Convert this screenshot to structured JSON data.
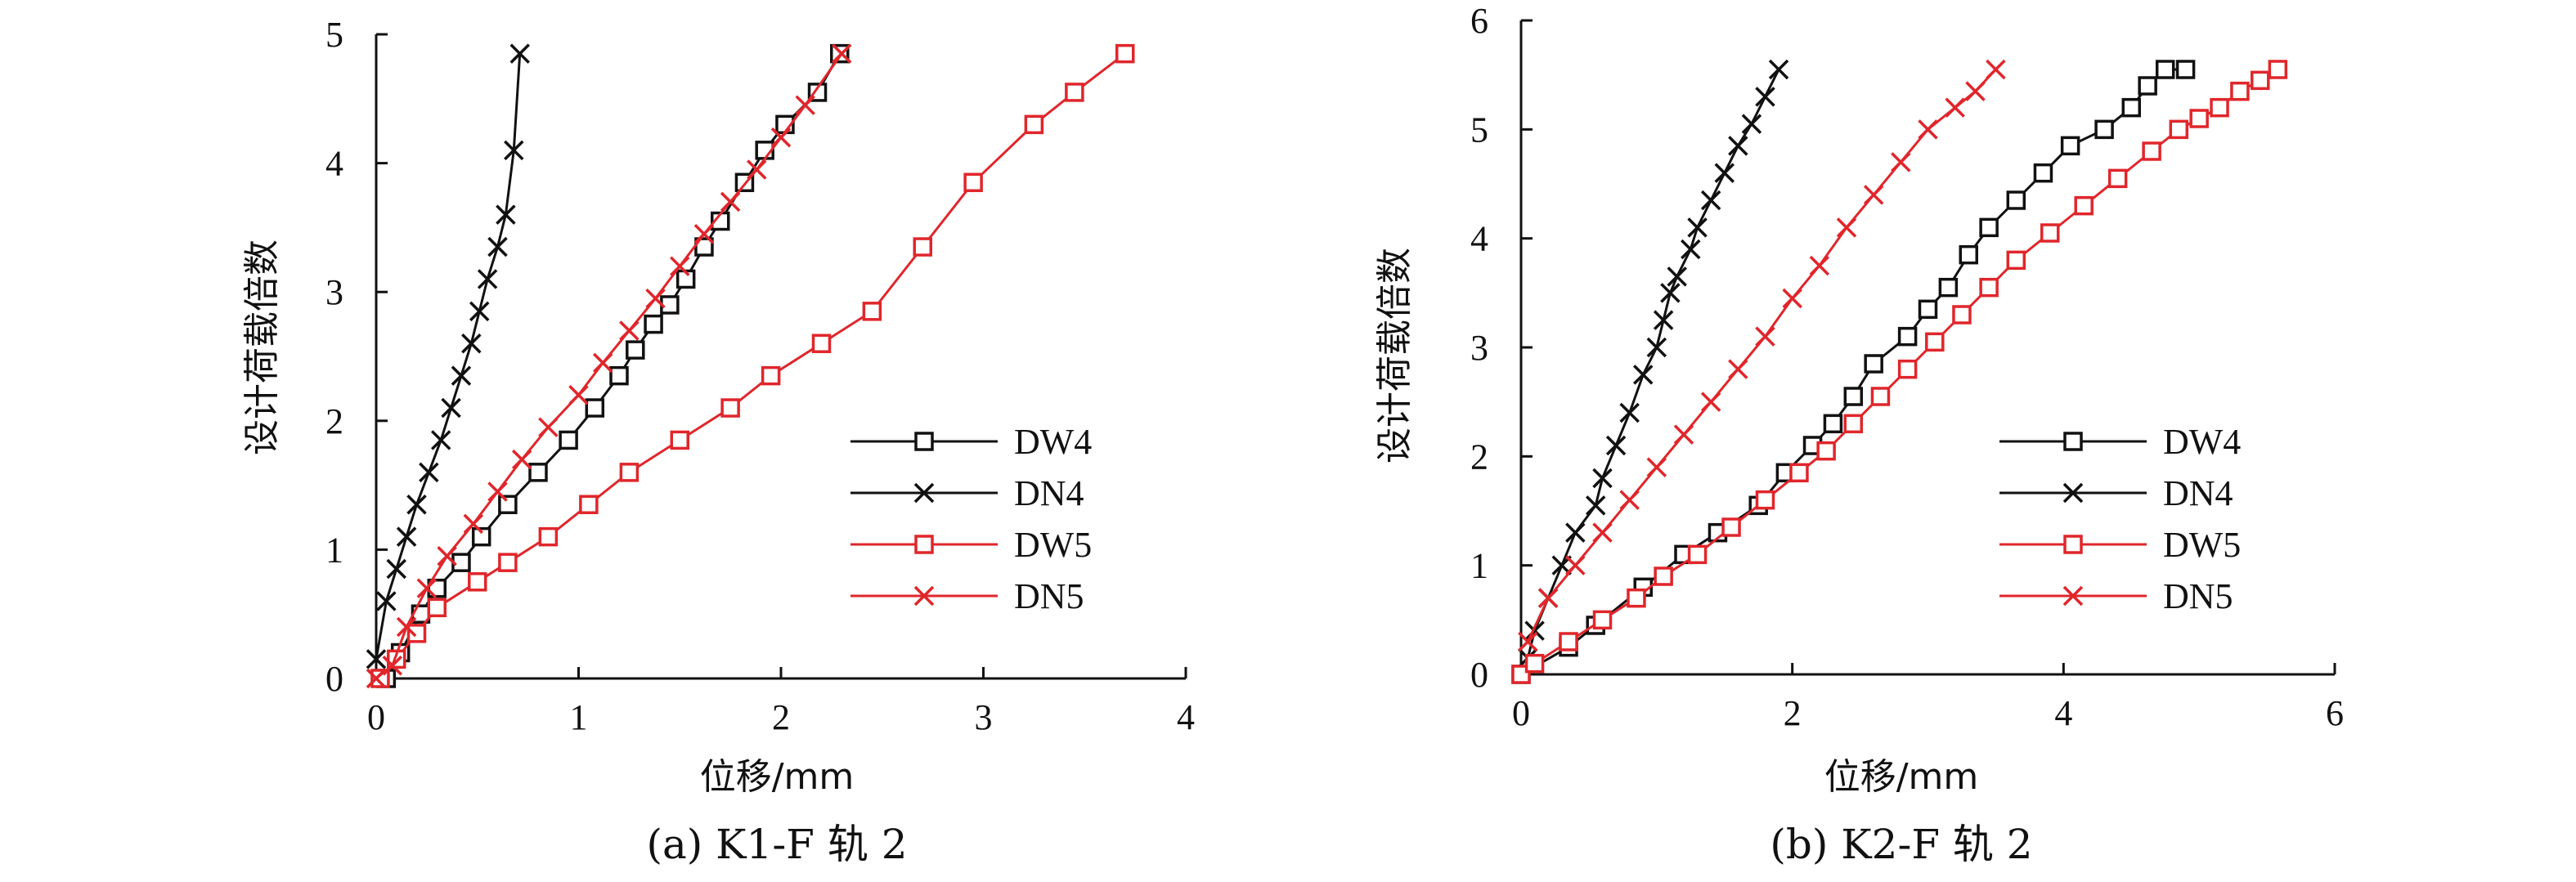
{
  "chart_data": [
    {
      "type": "line",
      "caption": "(a) K1-F 轨 2",
      "xlabel": "位移/mm",
      "ylabel": "设计荷载倍数",
      "xlim": [
        0,
        4
      ],
      "ylim": [
        0,
        5
      ],
      "xticks": [
        0,
        1,
        2,
        3,
        4
      ],
      "yticks": [
        0,
        1,
        2,
        3,
        4,
        5
      ],
      "legend_position": "right",
      "series": [
        {
          "name": "DW4",
          "color": "#111111",
          "marker": "square",
          "x": [
            0.05,
            0.12,
            0.22,
            0.3,
            0.42,
            0.52,
            0.65,
            0.8,
            0.95,
            1.08,
            1.2,
            1.28,
            1.37,
            1.45,
            1.53,
            1.62,
            1.7,
            1.82,
            1.92,
            2.02,
            2.18,
            2.29
          ],
          "y": [
            0.0,
            0.2,
            0.5,
            0.7,
            0.9,
            1.1,
            1.35,
            1.6,
            1.85,
            2.1,
            2.35,
            2.55,
            2.75,
            2.9,
            3.1,
            3.35,
            3.55,
            3.85,
            4.1,
            4.3,
            4.55,
            4.85
          ]
        },
        {
          "name": "DN4",
          "color": "#111111",
          "marker": "x",
          "x": [
            0.0,
            0.05,
            0.1,
            0.15,
            0.2,
            0.26,
            0.32,
            0.37,
            0.42,
            0.47,
            0.51,
            0.55,
            0.6,
            0.64,
            0.68,
            0.71
          ],
          "y": [
            0.15,
            0.6,
            0.85,
            1.1,
            1.35,
            1.6,
            1.85,
            2.1,
            2.35,
            2.6,
            2.85,
            3.1,
            3.35,
            3.6,
            4.1,
            4.85
          ]
        },
        {
          "name": "DW5",
          "color": "#e0262b",
          "marker": "square",
          "x": [
            0.02,
            0.1,
            0.2,
            0.3,
            0.5,
            0.65,
            0.85,
            1.05,
            1.25,
            1.5,
            1.75,
            1.95,
            2.2,
            2.45,
            2.7,
            2.95,
            3.25,
            3.45,
            3.7
          ],
          "y": [
            0.0,
            0.15,
            0.35,
            0.55,
            0.75,
            0.9,
            1.1,
            1.35,
            1.6,
            1.85,
            2.1,
            2.35,
            2.6,
            2.85,
            3.35,
            3.85,
            4.3,
            4.55,
            4.85
          ]
        },
        {
          "name": "DN5",
          "color": "#e0262b",
          "marker": "x",
          "x": [
            0.0,
            0.08,
            0.15,
            0.25,
            0.35,
            0.48,
            0.6,
            0.72,
            0.85,
            1.0,
            1.12,
            1.25,
            1.38,
            1.5,
            1.62,
            1.75,
            1.88,
            2.0,
            2.12,
            2.3
          ],
          "y": [
            0.0,
            0.1,
            0.4,
            0.7,
            0.95,
            1.2,
            1.45,
            1.7,
            1.95,
            2.2,
            2.45,
            2.7,
            2.95,
            3.2,
            3.45,
            3.7,
            3.95,
            4.2,
            4.45,
            4.85
          ]
        }
      ]
    },
    {
      "type": "line",
      "caption": "(b) K2-F 轨 2",
      "xlabel": "位移/mm",
      "ylabel": "设计荷载倍数",
      "xlim": [
        0,
        6
      ],
      "ylim": [
        0,
        6
      ],
      "xticks": [
        0,
        2,
        4,
        6
      ],
      "yticks": [
        0,
        1,
        2,
        3,
        4,
        5,
        6
      ],
      "legend_position": "right",
      "series": [
        {
          "name": "DW4",
          "color": "#111111",
          "marker": "square",
          "x": [
            0.0,
            0.35,
            0.55,
            0.9,
            1.2,
            1.45,
            1.75,
            1.95,
            2.15,
            2.3,
            2.45,
            2.6,
            2.85,
            3.0,
            3.15,
            3.3,
            3.45,
            3.65,
            3.85,
            4.05,
            4.3,
            4.5,
            4.62,
            4.75,
            4.9
          ],
          "y": [
            0.0,
            0.25,
            0.45,
            0.8,
            1.1,
            1.3,
            1.55,
            1.85,
            2.1,
            2.3,
            2.55,
            2.85,
            3.1,
            3.35,
            3.55,
            3.85,
            4.1,
            4.35,
            4.6,
            4.85,
            5.0,
            5.2,
            5.4,
            5.55,
            5.55
          ]
        },
        {
          "name": "DN4",
          "color": "#111111",
          "marker": "x",
          "x": [
            0.05,
            0.1,
            0.2,
            0.3,
            0.4,
            0.55,
            0.6,
            0.7,
            0.8,
            0.9,
            1.0,
            1.05,
            1.1,
            1.15,
            1.25,
            1.3,
            1.4,
            1.5,
            1.6,
            1.7,
            1.8,
            1.9
          ],
          "y": [
            0.15,
            0.4,
            0.7,
            1.0,
            1.3,
            1.55,
            1.8,
            2.1,
            2.4,
            2.75,
            3.0,
            3.25,
            3.5,
            3.65,
            3.9,
            4.1,
            4.35,
            4.6,
            4.85,
            5.05,
            5.3,
            5.55
          ]
        },
        {
          "name": "DW5",
          "color": "#e0262b",
          "marker": "square",
          "x": [
            0.0,
            0.1,
            0.35,
            0.6,
            0.85,
            1.05,
            1.3,
            1.55,
            1.8,
            2.05,
            2.25,
            2.45,
            2.65,
            2.85,
            3.05,
            3.25,
            3.45,
            3.65,
            3.9,
            4.15,
            4.4,
            4.65,
            4.85,
            5.0,
            5.15,
            5.3,
            5.45,
            5.58
          ],
          "y": [
            0.0,
            0.1,
            0.3,
            0.5,
            0.7,
            0.9,
            1.1,
            1.35,
            1.6,
            1.85,
            2.05,
            2.3,
            2.55,
            2.8,
            3.05,
            3.3,
            3.55,
            3.8,
            4.05,
            4.3,
            4.55,
            4.8,
            5.0,
            5.1,
            5.2,
            5.35,
            5.45,
            5.55
          ]
        },
        {
          "name": "DN5",
          "color": "#e0262b",
          "marker": "x",
          "x": [
            0.05,
            0.2,
            0.4,
            0.6,
            0.8,
            1.0,
            1.2,
            1.4,
            1.6,
            1.8,
            2.0,
            2.2,
            2.4,
            2.6,
            2.8,
            3.0,
            3.2,
            3.35,
            3.5
          ],
          "y": [
            0.3,
            0.7,
            1.0,
            1.3,
            1.6,
            1.9,
            2.2,
            2.5,
            2.8,
            3.1,
            3.45,
            3.75,
            4.1,
            4.4,
            4.7,
            5.0,
            5.2,
            5.35,
            5.55
          ]
        }
      ]
    }
  ]
}
